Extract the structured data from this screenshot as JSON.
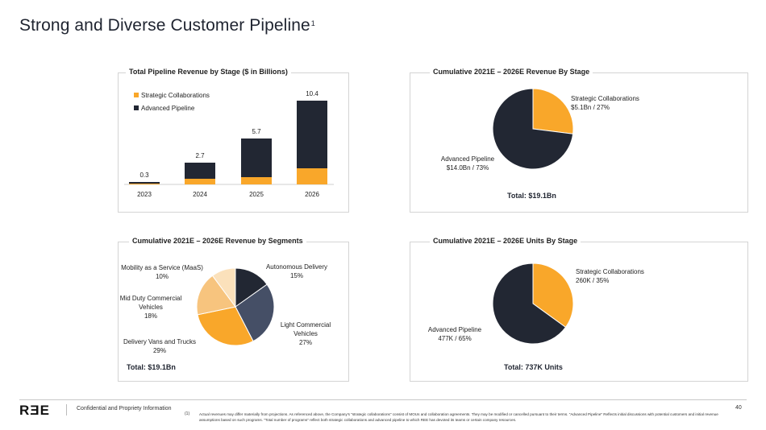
{
  "page": {
    "title": "Strong and Diverse Customer Pipeline",
    "title_superscript": "1",
    "logo": "RƎE",
    "confidential": "Confidential and Propriety Information",
    "footnote_marker": "(1)",
    "footnote": "Actual revenues may differ materially from projections. As referenced above, the Company's \"strategic collaborations\" consist of MOUs and collaboration agreements. They may be modified or cancelled pursuant to their terms. \"Advanced Pipeline\" Reflects initial discussions with potential customers and initial revenue assumptions based on such programs. \"Total number of programs\" reflect both strategic collaborations and advanced pipeline to which REE has devoted its teams or certain company resources.",
    "page_number": "40"
  },
  "colors": {
    "orange": "#F9A72A",
    "navy": "#222733",
    "slate": "#454F66",
    "tan": "#F7C47E",
    "cream": "#FBE1BB"
  },
  "chart_data": [
    {
      "id": "pipeline-by-stage",
      "type": "bar",
      "stacked": true,
      "title": "Total Pipeline Revenue by Stage ($ in Billions)",
      "categories": [
        "2023",
        "2024",
        "2025",
        "2026"
      ],
      "series": [
        {
          "name": "Strategic Collaborations",
          "values": [
            0.1,
            0.7,
            0.9,
            2.0
          ]
        },
        {
          "name": "Advanced Pipeline",
          "values": [
            0.2,
            2.0,
            4.8,
            8.4
          ]
        }
      ],
      "totals": [
        "0.3",
        "2.7",
        "5.7",
        "10.4"
      ],
      "legend": "top-left",
      "ylim": [
        0,
        10.4
      ]
    },
    {
      "id": "revenue-by-stage",
      "type": "pie",
      "title": "Cumulative 2021E – 2026E Revenue By Stage",
      "slices": [
        {
          "name": "Strategic Collaborations",
          "value": 27,
          "label_line1": "Strategic Collaborations",
          "label_line2": "$5.1Bn / 27%"
        },
        {
          "name": "Advanced Pipeline",
          "value": 73,
          "label_line1": "Advanced Pipeline",
          "label_line2": "$14.0Bn / 73%"
        }
      ],
      "total": "Total: $19.1Bn"
    },
    {
      "id": "revenue-by-segments",
      "type": "pie",
      "title": "Cumulative 2021E – 2026E Revenue by Segments",
      "slices": [
        {
          "name": "Autonomous Delivery",
          "value": 15,
          "lines": [
            "Autonomous Delivery",
            "15%"
          ]
        },
        {
          "name": "Light Commercial Vehicles",
          "value": 27,
          "lines": [
            "Light Commercial",
            "Vehicles",
            "27%"
          ]
        },
        {
          "name": "Delivery Vans and Trucks",
          "value": 29,
          "lines": [
            "Delivery Vans and Trucks",
            "29%"
          ]
        },
        {
          "name": "Mid Duty Commercial Vehicles",
          "value": 18,
          "lines": [
            "Mid Duty Commercial",
            "Vehicles",
            "18%"
          ]
        },
        {
          "name": "Mobility as a Service (MaaS)",
          "value": 10,
          "lines": [
            "Mobility as a Service (MaaS)",
            "10%"
          ]
        }
      ],
      "total": "Total: $19.1Bn"
    },
    {
      "id": "units-by-stage",
      "type": "pie",
      "title": "Cumulative 2021E – 2026E Units By Stage",
      "slices": [
        {
          "name": "Strategic Collaborations",
          "value": 35,
          "label_line1": "Strategic Collaborations",
          "label_line2": "260K / 35%"
        },
        {
          "name": "Advanced Pipeline",
          "value": 65,
          "label_line1": "Advanced Pipeline",
          "label_line2": "477K / 65%"
        }
      ],
      "total": "Total: 737K Units"
    }
  ]
}
